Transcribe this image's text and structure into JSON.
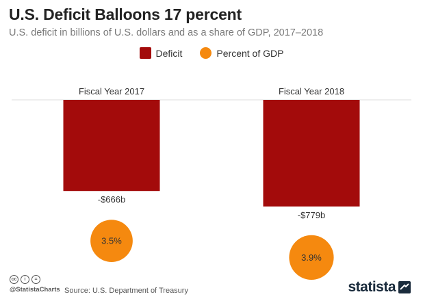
{
  "header": {
    "title": "U.S. Deficit Balloons 17 percent",
    "subtitle": "U.S. deficit in billions of U.S. dollars and as a share of GDP, 2017–2018"
  },
  "legend": {
    "deficit_label": "Deficit",
    "gdp_label": "Percent of GDP"
  },
  "colors": {
    "deficit": "#a30b0b",
    "gdp": "#f5890f",
    "baseline": "#dddddd"
  },
  "chart_data": {
    "type": "bar",
    "categories": [
      "Fiscal Year 2017",
      "Fiscal Year 2018"
    ],
    "series": [
      {
        "name": "Deficit",
        "values": [
          -666,
          -779
        ],
        "labels": [
          "-$666b",
          "-$779b"
        ]
      },
      {
        "name": "Percent of GDP",
        "values": [
          3.5,
          3.9
        ],
        "labels": [
          "3.5%",
          "3.9%"
        ]
      }
    ],
    "ylabel": "",
    "legend_position": "top-center",
    "grid": false
  },
  "footer": {
    "source": "Source: U.S. Department of Treasury",
    "handle": "@StatistaCharts",
    "logo": "statista",
    "cc_icons": [
      "cc",
      "i",
      "="
    ]
  }
}
